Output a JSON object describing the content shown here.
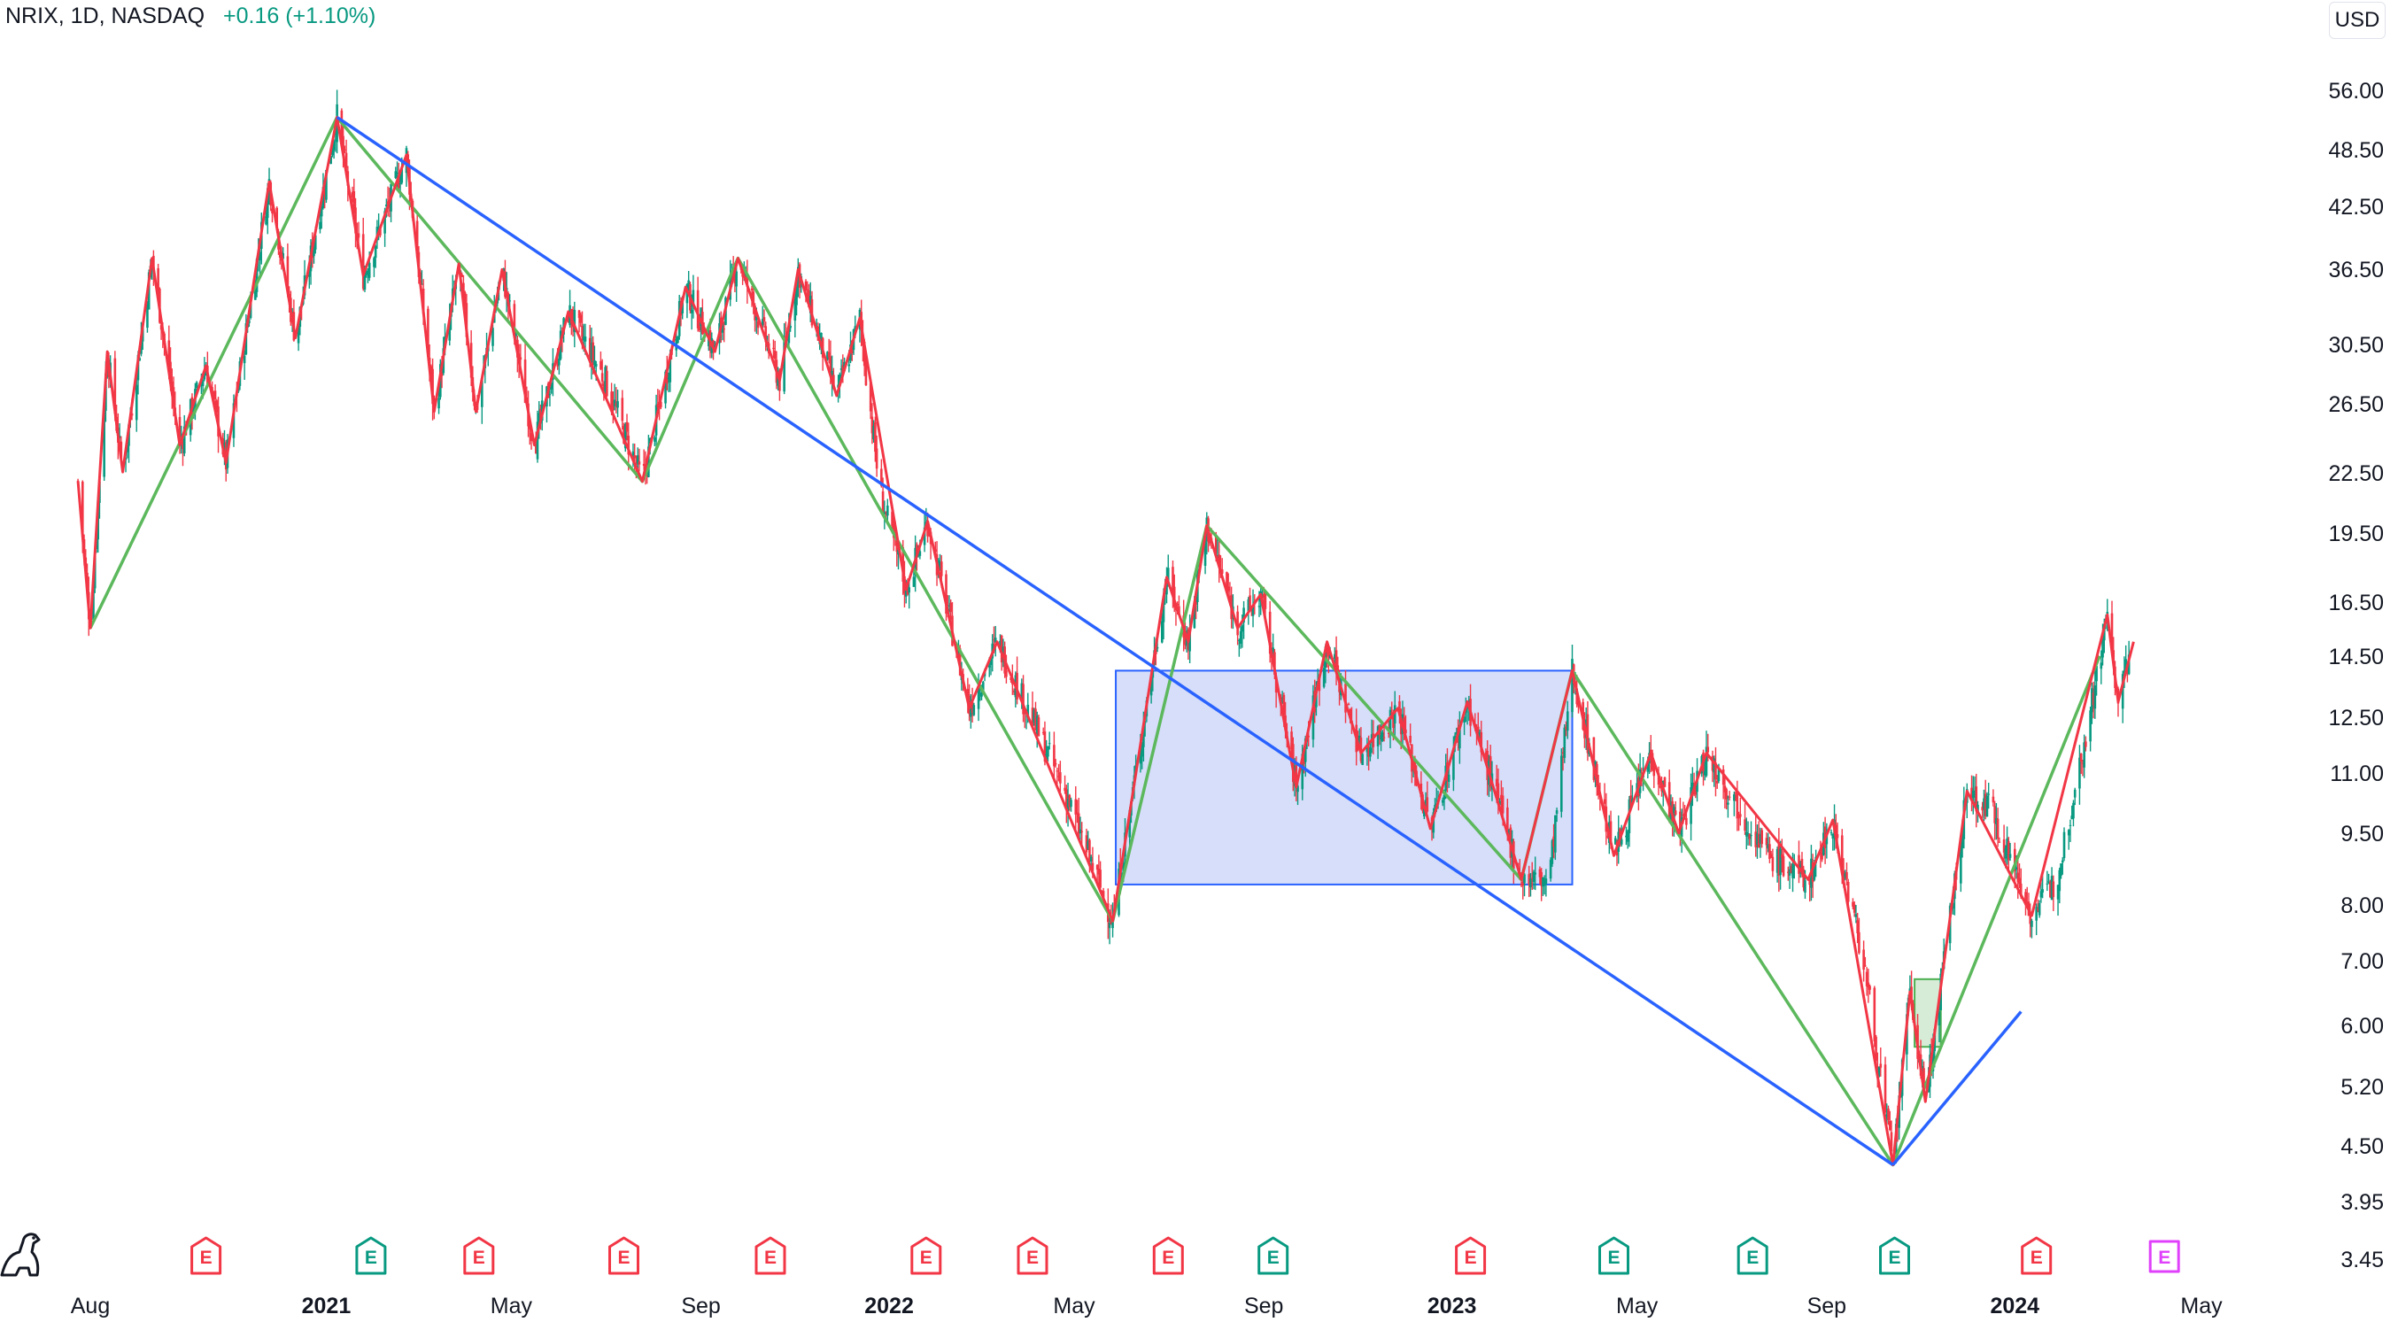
{
  "header": {
    "symbol": "NRIX, 1D, NASDAQ",
    "change": "+0.16 (+1.10%)"
  },
  "currency_button": "USD",
  "colors": {
    "up": "#089981",
    "down": "#f23645",
    "zigzag_minor": "#f23645",
    "zigzag_major": "#5cb85c",
    "trend": "#2962ff",
    "box_fill": "#c5d0f7",
    "box_stroke": "#2962ff",
    "earnings_red": "#f23645",
    "earnings_green": "#089981",
    "earnings_magenta": "#e040fb"
  },
  "icons": {
    "dino": "dinosaur-icon"
  },
  "chart_data": {
    "type": "candlestick",
    "scale": "log",
    "ylim": [
      3.2,
      62
    ],
    "y_ticks": [
      "56.00",
      "48.50",
      "42.50",
      "36.50",
      "30.50",
      "26.50",
      "22.50",
      "19.50",
      "16.50",
      "14.50",
      "12.50",
      "11.00",
      "9.50",
      "8.00",
      "7.00",
      "6.00",
      "5.20",
      "4.50",
      "3.95",
      "3.45"
    ],
    "x_ticks": [
      {
        "label": "Aug",
        "date": "2020-08-01",
        "bold": false
      },
      {
        "label": "2021",
        "date": "2021-01-01",
        "bold": true
      },
      {
        "label": "May",
        "date": "2021-05-01",
        "bold": false
      },
      {
        "label": "Sep",
        "date": "2021-09-01",
        "bold": false
      },
      {
        "label": "2022",
        "date": "2022-01-01",
        "bold": true
      },
      {
        "label": "May",
        "date": "2022-05-01",
        "bold": false
      },
      {
        "label": "Sep",
        "date": "2022-09-01",
        "bold": false
      },
      {
        "label": "2023",
        "date": "2023-01-01",
        "bold": true
      },
      {
        "label": "May",
        "date": "2023-05-01",
        "bold": false
      },
      {
        "label": "Sep",
        "date": "2023-09-01",
        "bold": false
      },
      {
        "label": "2024",
        "date": "2024-01-01",
        "bold": true
      },
      {
        "label": "May",
        "date": "2024-05-01",
        "bold": false
      }
    ],
    "price_path": [
      [
        "2020-07-24",
        22.0
      ],
      [
        "2020-08-01",
        15.5
      ],
      [
        "2020-08-12",
        30.0
      ],
      [
        "2020-08-22",
        22.5
      ],
      [
        "2020-09-10",
        37.5
      ],
      [
        "2020-09-28",
        24.0
      ],
      [
        "2020-10-15",
        29.0
      ],
      [
        "2020-10-28",
        23.0
      ],
      [
        "2020-11-25",
        45.0
      ],
      [
        "2020-12-12",
        31.0
      ],
      [
        "2021-01-08",
        52.5
      ],
      [
        "2021-01-25",
        36.0
      ],
      [
        "2021-02-22",
        48.0
      ],
      [
        "2021-03-12",
        26.0
      ],
      [
        "2021-03-28",
        37.0
      ],
      [
        "2021-04-08",
        26.0
      ],
      [
        "2021-04-25",
        36.5
      ],
      [
        "2021-05-16",
        24.0
      ],
      [
        "2021-06-07",
        33.0
      ],
      [
        "2021-07-01",
        28.0
      ],
      [
        "2021-07-25",
        22.0
      ],
      [
        "2021-08-22",
        35.0
      ],
      [
        "2021-09-10",
        30.0
      ],
      [
        "2021-09-25",
        37.5
      ],
      [
        "2021-10-22",
        28.0
      ],
      [
        "2021-11-03",
        36.5
      ],
      [
        "2021-11-28",
        27.0
      ],
      [
        "2021-12-13",
        32.5
      ],
      [
        "2021-12-26",
        21.5
      ],
      [
        "2022-01-12",
        17.0
      ],
      [
        "2022-01-26",
        20.0
      ],
      [
        "2022-02-22",
        12.8
      ],
      [
        "2022-03-12",
        15.0
      ],
      [
        "2022-04-25",
        10.5
      ],
      [
        "2022-05-26",
        7.7
      ],
      [
        "2022-06-10",
        11.0
      ],
      [
        "2022-06-30",
        17.5
      ],
      [
        "2022-07-14",
        15.0
      ],
      [
        "2022-07-26",
        19.8
      ],
      [
        "2022-08-15",
        15.5
      ],
      [
        "2022-08-30",
        16.8
      ],
      [
        "2022-09-22",
        10.6
      ],
      [
        "2022-10-12",
        15.0
      ],
      [
        "2022-11-03",
        11.5
      ],
      [
        "2022-11-27",
        12.8
      ],
      [
        "2022-12-18",
        9.6
      ],
      [
        "2023-01-11",
        13.0
      ],
      [
        "2023-02-15",
        8.5
      ],
      [
        "2023-03-05",
        8.5
      ],
      [
        "2023-03-20",
        14.0
      ],
      [
        "2023-04-16",
        9.0
      ],
      [
        "2023-05-10",
        11.5
      ],
      [
        "2023-05-28",
        9.5
      ],
      [
        "2023-06-15",
        11.5
      ],
      [
        "2023-07-25",
        9.0
      ],
      [
        "2023-08-20",
        8.5
      ],
      [
        "2023-09-05",
        9.8
      ],
      [
        "2023-09-25",
        7.0
      ],
      [
        "2023-10-14",
        4.3
      ],
      [
        "2023-10-25",
        6.5
      ],
      [
        "2023-11-04",
        5.0
      ],
      [
        "2023-12-01",
        10.5
      ],
      [
        "2023-12-18",
        10.0
      ],
      [
        "2024-01-12",
        7.8
      ],
      [
        "2024-01-28",
        8.5
      ],
      [
        "2024-02-18",
        12.5
      ],
      [
        "2024-03-01",
        16.0
      ],
      [
        "2024-03-08",
        13.0
      ],
      [
        "2024-03-18",
        15.0
      ]
    ],
    "zigzag_minor": [
      [
        "2020-07-24",
        22.0
      ],
      [
        "2020-08-01",
        15.5
      ],
      [
        "2020-08-12",
        30.0
      ],
      [
        "2020-08-22",
        22.5
      ],
      [
        "2020-09-10",
        37.5
      ],
      [
        "2020-09-28",
        24.0
      ],
      [
        "2020-10-15",
        29.0
      ],
      [
        "2020-10-28",
        23.0
      ],
      [
        "2020-11-25",
        45.0
      ],
      [
        "2020-12-12",
        31.0
      ],
      [
        "2021-01-08",
        52.5
      ],
      [
        "2021-01-25",
        36.0
      ],
      [
        "2021-02-22",
        48.0
      ],
      [
        "2021-03-12",
        26.0
      ],
      [
        "2021-03-28",
        37.0
      ],
      [
        "2021-04-08",
        26.0
      ],
      [
        "2021-04-25",
        36.5
      ],
      [
        "2021-05-16",
        24.0
      ],
      [
        "2021-06-07",
        33.0
      ],
      [
        "2021-07-25",
        22.0
      ],
      [
        "2021-08-22",
        35.0
      ],
      [
        "2021-09-10",
        30.0
      ],
      [
        "2021-09-25",
        37.5
      ],
      [
        "2021-10-22",
        28.0
      ],
      [
        "2021-11-03",
        36.5
      ],
      [
        "2021-11-28",
        27.0
      ],
      [
        "2021-12-13",
        32.5
      ],
      [
        "2022-01-12",
        17.0
      ],
      [
        "2022-01-26",
        20.0
      ],
      [
        "2022-02-22",
        12.8
      ],
      [
        "2022-03-12",
        15.0
      ],
      [
        "2022-05-26",
        7.7
      ],
      [
        "2022-06-30",
        17.5
      ],
      [
        "2022-07-14",
        15.0
      ],
      [
        "2022-07-26",
        19.8
      ],
      [
        "2022-08-15",
        15.5
      ],
      [
        "2022-08-30",
        16.8
      ],
      [
        "2022-09-22",
        10.6
      ],
      [
        "2022-10-12",
        15.0
      ],
      [
        "2022-11-03",
        11.5
      ],
      [
        "2022-11-27",
        12.8
      ],
      [
        "2022-12-18",
        9.6
      ],
      [
        "2023-01-11",
        13.0
      ],
      [
        "2023-02-15",
        8.5
      ],
      [
        "2023-03-20",
        14.0
      ],
      [
        "2023-04-16",
        9.0
      ],
      [
        "2023-05-10",
        11.5
      ],
      [
        "2023-05-28",
        9.5
      ],
      [
        "2023-06-15",
        11.5
      ],
      [
        "2023-08-20",
        8.5
      ],
      [
        "2023-09-05",
        9.8
      ],
      [
        "2023-10-14",
        4.3
      ],
      [
        "2023-10-25",
        6.5
      ],
      [
        "2023-11-04",
        5.0
      ],
      [
        "2023-12-01",
        10.5
      ],
      [
        "2024-01-12",
        7.8
      ],
      [
        "2024-03-01",
        16.0
      ],
      [
        "2024-03-08",
        13.0
      ],
      [
        "2024-03-18",
        15.0
      ]
    ],
    "zigzag_major": [
      [
        "2020-08-01",
        15.5
      ],
      [
        "2021-01-08",
        52.5
      ],
      [
        "2021-07-25",
        22.0
      ],
      [
        "2021-09-25",
        37.5
      ],
      [
        "2022-05-26",
        7.7
      ],
      [
        "2022-07-26",
        19.8
      ],
      [
        "2023-02-15",
        8.5
      ],
      [
        "2023-03-20",
        14.0
      ],
      [
        "2023-10-14",
        4.3
      ],
      [
        "2024-02-25",
        14.5
      ]
    ],
    "trend_lines": [
      [
        [
          "2021-01-08",
          52.5
        ],
        [
          "2023-10-14",
          4.3
        ]
      ],
      [
        [
          "2023-10-14",
          4.3
        ],
        [
          "2024-01-05",
          6.2
        ]
      ]
    ],
    "boxes": [
      {
        "start": "2022-05-28",
        "end": "2023-03-20",
        "low": 8.4,
        "high": 14.0,
        "style": "blue"
      },
      {
        "start": "2023-10-28",
        "end": "2023-11-14",
        "low": 5.7,
        "high": 6.7,
        "style": "green"
      }
    ],
    "earnings": [
      {
        "date": "2020-10-15",
        "color": "red"
      },
      {
        "date": "2021-01-30",
        "color": "green"
      },
      {
        "date": "2021-04-10",
        "color": "red"
      },
      {
        "date": "2021-07-13",
        "color": "red"
      },
      {
        "date": "2021-10-16",
        "color": "red"
      },
      {
        "date": "2022-01-25",
        "color": "red"
      },
      {
        "date": "2022-04-04",
        "color": "red"
      },
      {
        "date": "2022-07-01",
        "color": "red"
      },
      {
        "date": "2022-09-07",
        "color": "green"
      },
      {
        "date": "2023-01-13",
        "color": "red"
      },
      {
        "date": "2023-04-16",
        "color": "green"
      },
      {
        "date": "2023-07-15",
        "color": "green"
      },
      {
        "date": "2023-10-15",
        "color": "green"
      },
      {
        "date": "2024-01-15",
        "color": "red"
      },
      {
        "date": "2024-04-07",
        "color": "magenta"
      }
    ],
    "earnings_label": "E"
  }
}
